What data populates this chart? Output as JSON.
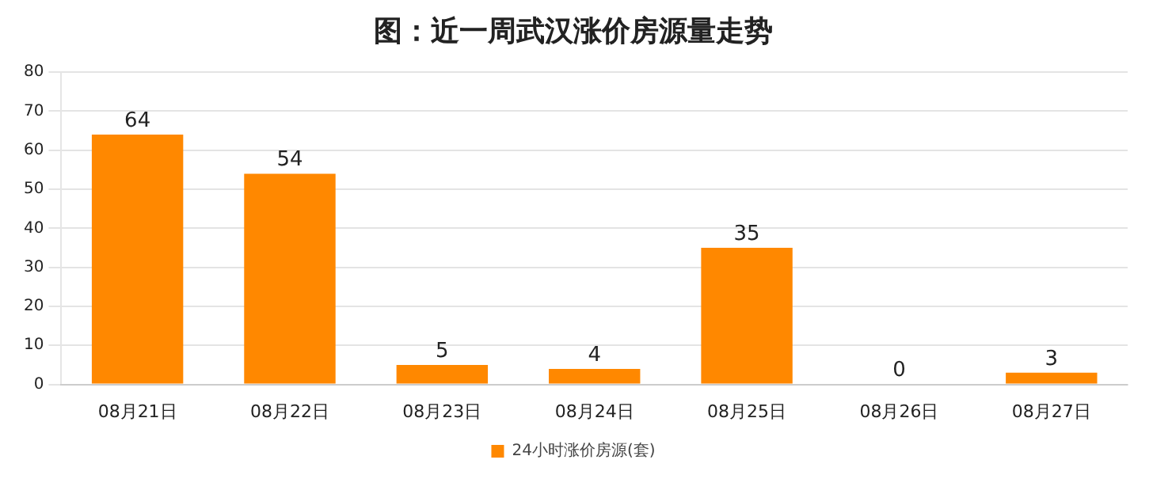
{
  "chart_data": {
    "type": "bar",
    "title": "图：近一周武汉涨价房源量走势",
    "categories": [
      "08月21日",
      "08月22日",
      "08月23日",
      "08月24日",
      "08月25日",
      "08月26日",
      "08月27日"
    ],
    "series": [
      {
        "name": "24小时涨价房源(套)",
        "color": "#ff8800",
        "values": [
          64,
          54,
          5,
          4,
          35,
          0,
          3
        ]
      }
    ],
    "ylim": [
      0,
      80
    ],
    "yticks": [
      0,
      10,
      20,
      30,
      40,
      50,
      60,
      70,
      80
    ],
    "grid": "y",
    "legend": "bottom",
    "data_labels": true
  }
}
